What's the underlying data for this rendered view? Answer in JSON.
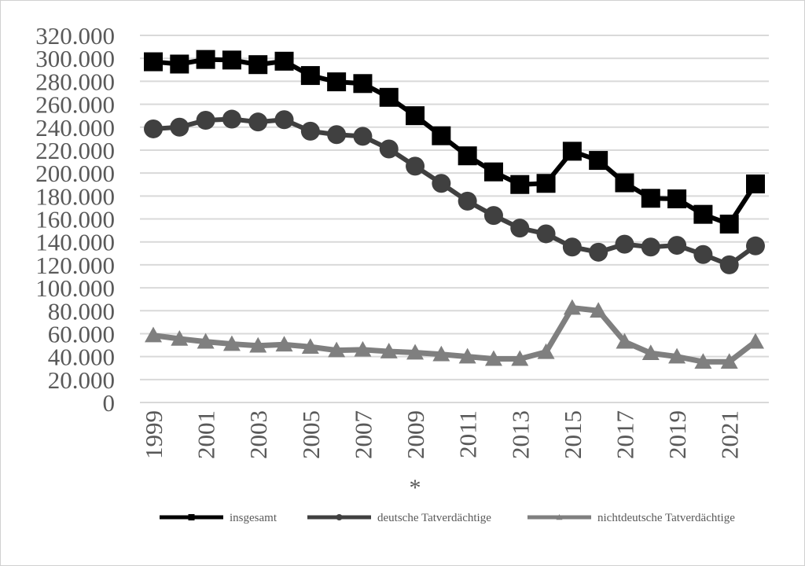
{
  "chart_data": {
    "type": "line",
    "x": [
      1999,
      2000,
      2001,
      2002,
      2003,
      2004,
      2005,
      2006,
      2007,
      2008,
      2009,
      2010,
      2011,
      2012,
      2013,
      2014,
      2015,
      2016,
      2017,
      2018,
      2019,
      2020,
      2021,
      2022
    ],
    "x_tick_labels": [
      "1999",
      "2001",
      "2003",
      "2005",
      "2007",
      "2009",
      "2011",
      "2013",
      "2015",
      "2017",
      "2019",
      "2021"
    ],
    "y_tick_labels": [
      "0",
      "20.000",
      "40.000",
      "60.000",
      "80.000",
      "100.000",
      "120.000",
      "140.000",
      "160.000",
      "180.000",
      "200.000",
      "220.000",
      "240.000",
      "260.000",
      "280.000",
      "300.000",
      "320.000"
    ],
    "ylim": [
      0,
      320000
    ],
    "grid": true,
    "legend_position": "bottom",
    "annotation": "*",
    "series": [
      {
        "name": "insgesamt",
        "color": "#000000",
        "marker": "square",
        "values": [
          297000,
          295000,
          299000,
          298500,
          294500,
          297500,
          285000,
          279500,
          278000,
          266000,
          250000,
          232500,
          215000,
          201000,
          190000,
          191000,
          219000,
          211000,
          191500,
          178000,
          177500,
          164000,
          155500,
          190500
        ]
      },
      {
        "name": "deutsche Tatverdächtige",
        "color": "#404040",
        "marker": "circle",
        "values": [
          238500,
          240000,
          246000,
          247000,
          244500,
          246500,
          236500,
          233500,
          232000,
          221000,
          206000,
          191000,
          175500,
          163000,
          152000,
          147000,
          135500,
          131000,
          138000,
          135500,
          137000,
          129000,
          120000,
          136500
        ]
      },
      {
        "name": "nichtdeutsche Tatverdächtige",
        "color": "#7f7f7f",
        "marker": "triangle",
        "values": [
          58500,
          55500,
          53000,
          51000,
          49500,
          50500,
          48500,
          45500,
          46000,
          44500,
          43500,
          42000,
          40000,
          38000,
          38000,
          44000,
          82500,
          80000,
          53000,
          43000,
          40000,
          35500,
          35500,
          53000
        ]
      }
    ]
  }
}
